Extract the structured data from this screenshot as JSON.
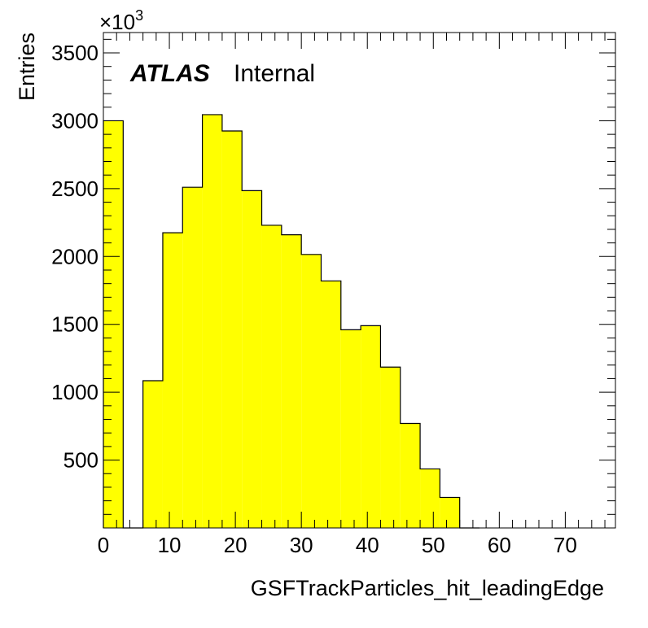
{
  "chart_data": {
    "type": "bar",
    "histogram": true,
    "bin_edges": [
      0,
      3,
      6,
      9,
      12,
      15,
      18,
      21,
      24,
      27,
      30,
      33,
      36,
      39,
      42,
      45,
      48,
      51,
      54,
      57
    ],
    "values": [
      3000,
      0,
      1085,
      2175,
      2510,
      3045,
      2925,
      2485,
      2230,
      2160,
      2015,
      1820,
      1460,
      1490,
      1185,
      770,
      435,
      225,
      0
    ],
    "value_multiplier_label": "×10",
    "value_multiplier_exponent": "3",
    "xlabel": "GSFTrackParticles_hit_leadingEdge",
    "ylabel": "Entries",
    "xlim": [
      0,
      75
    ],
    "ylim": [
      0,
      3650
    ],
    "x_ticks": [
      0,
      10,
      20,
      30,
      40,
      50,
      60,
      70
    ],
    "y_ticks": [
      500,
      1000,
      1500,
      2000,
      2500,
      3000,
      3500
    ],
    "fill_color": "#ffff00",
    "line_color": "#000000",
    "grid": false,
    "legend": "none"
  },
  "annotations": {
    "atlas": "ATLAS",
    "status": "Internal"
  }
}
